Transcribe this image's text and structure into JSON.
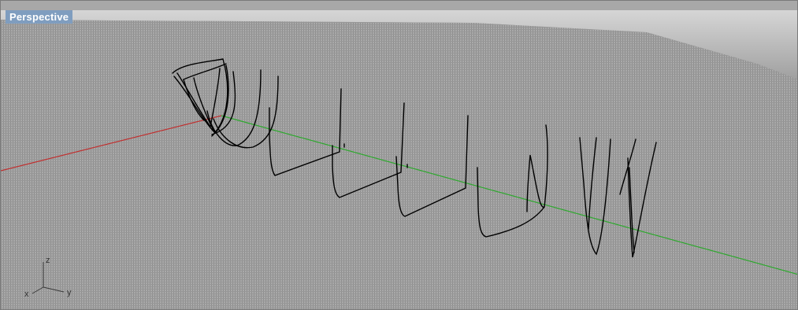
{
  "viewport": {
    "label": "Perspective",
    "background_color": "#a0a0a0",
    "grid_color": "#8c8c8c",
    "x_axis_color": "#c03030",
    "y_axis_color": "#2ea82e",
    "curve_color": "#000000",
    "label_bg_color": "#7f9dbf"
  },
  "axis_gizmo": {
    "x_label": "x",
    "y_label": "y",
    "z_label": "z"
  }
}
